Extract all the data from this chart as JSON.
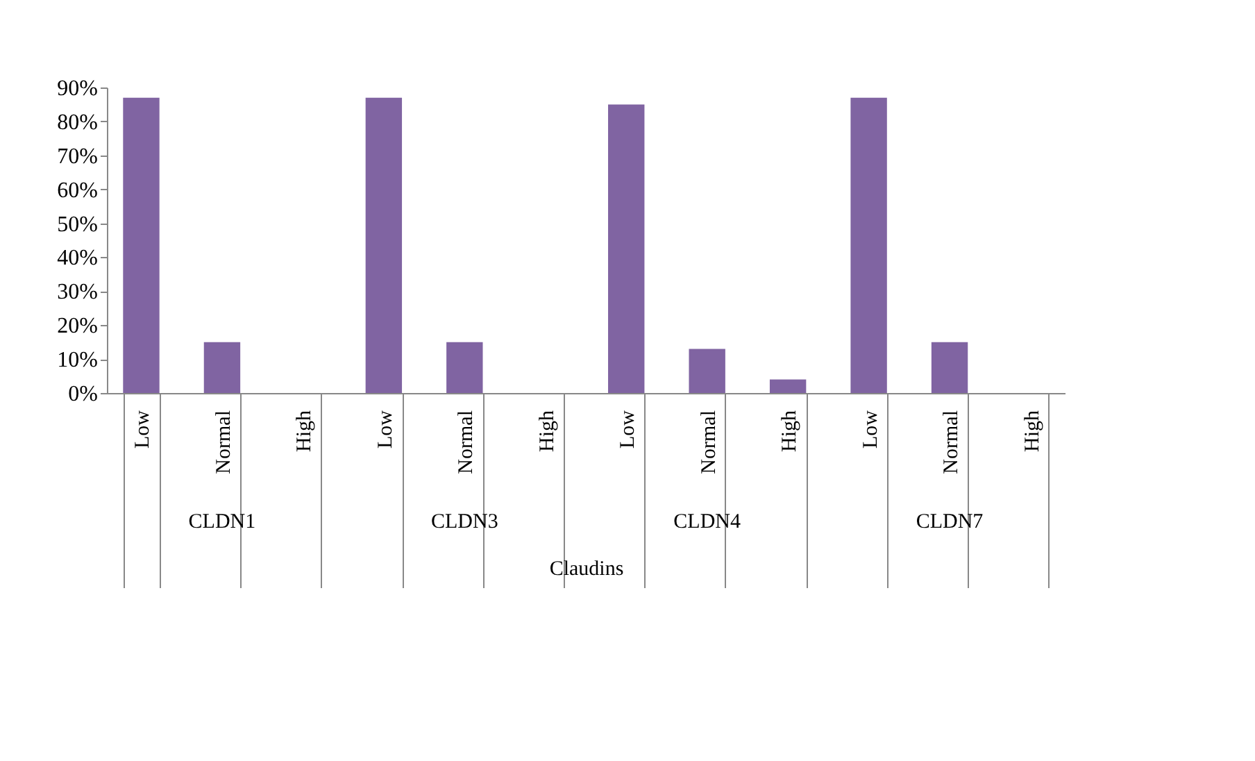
{
  "chart_data": {
    "type": "bar",
    "xlabel": "Claudins",
    "categories": [
      "Low",
      "Normal",
      "High",
      "Low",
      "Normal",
      "High",
      "Low",
      "Normal",
      "High",
      "Low",
      "Normal",
      "High"
    ],
    "values": [
      87,
      15,
      0,
      87,
      15,
      0,
      85,
      13,
      4,
      87,
      15,
      0
    ],
    "color": "#8064a2",
    "ylim": [
      0,
      90
    ],
    "yticks": [
      {
        "value": 0,
        "label": "0%"
      },
      {
        "value": 10,
        "label": "10%"
      },
      {
        "value": 20,
        "label": "20%"
      },
      {
        "value": 30,
        "label": "30%"
      },
      {
        "value": 40,
        "label": "40%"
      },
      {
        "value": 50,
        "label": "50%"
      },
      {
        "value": 60,
        "label": "60%"
      },
      {
        "value": 70,
        "label": "70%"
      },
      {
        "value": 80,
        "label": "80%"
      },
      {
        "value": 90,
        "label": "90%"
      }
    ],
    "annotations": [
      "CLDN1",
      "CLDN3",
      "CLDN4",
      "CLDN7"
    ],
    "grid": false
  }
}
